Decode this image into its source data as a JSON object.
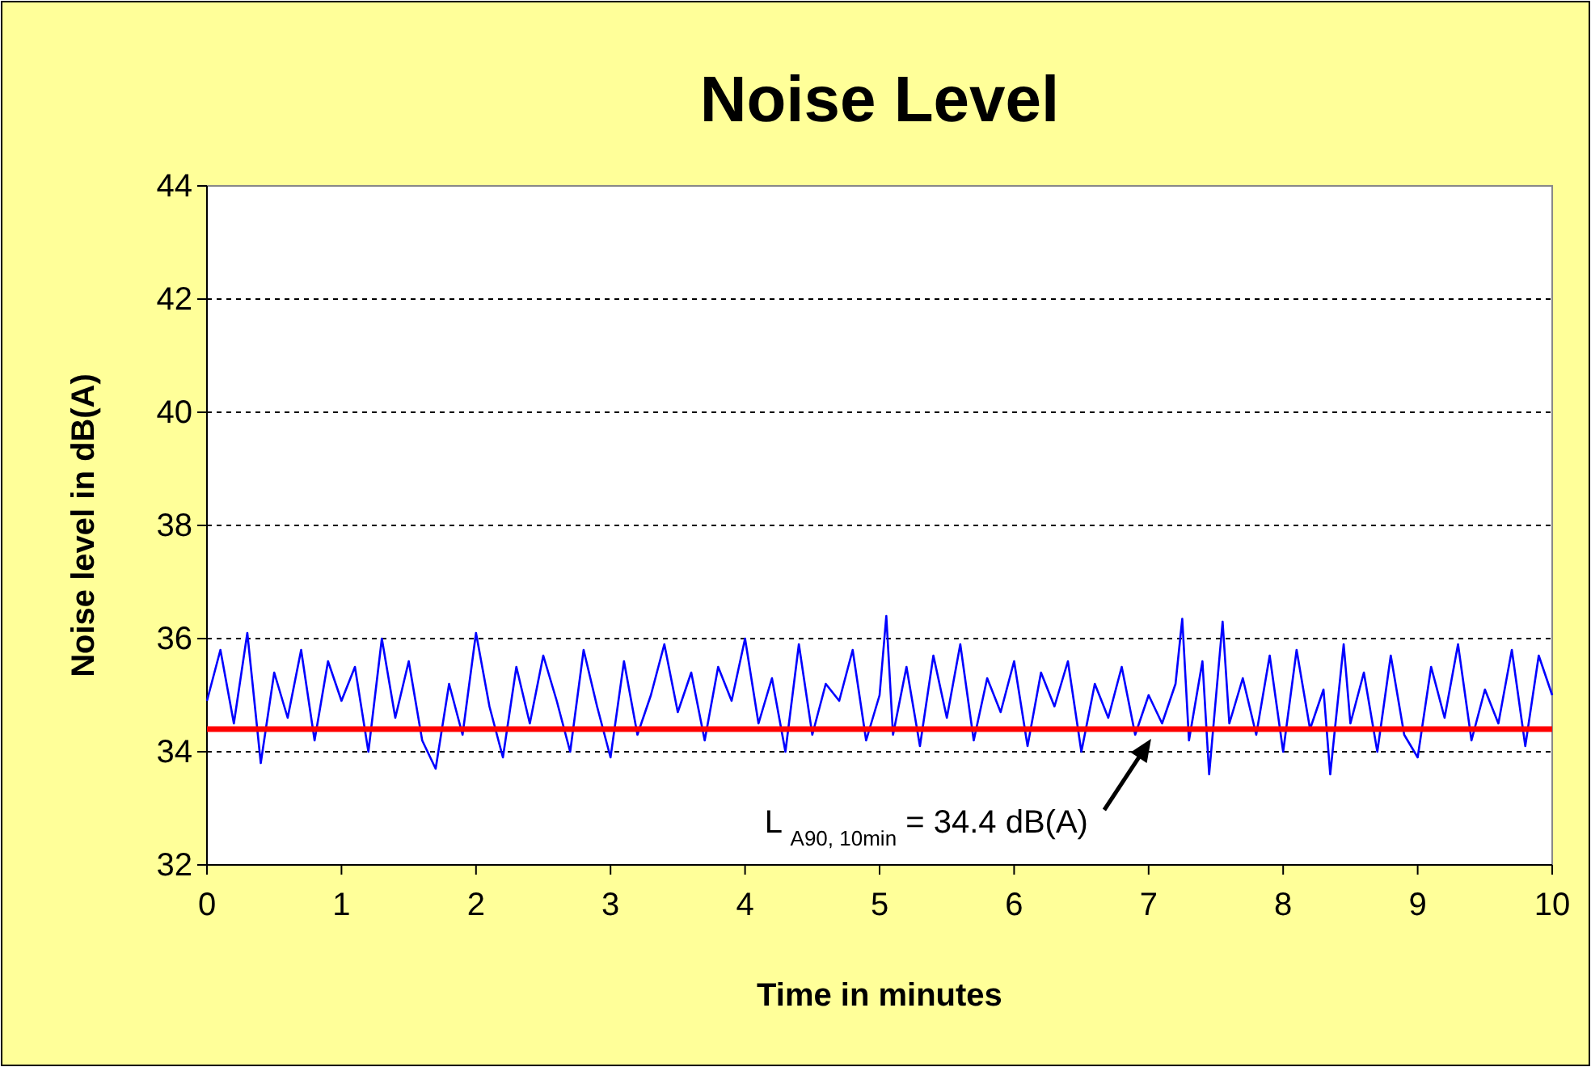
{
  "chart_data": {
    "type": "line",
    "title": "Noise Level",
    "xlabel": "Time in minutes",
    "ylabel": "Noise level in dB(A)",
    "x": [
      0,
      0.1,
      0.2,
      0.3,
      0.4,
      0.5,
      0.6,
      0.7,
      0.8,
      0.9,
      1,
      1.1,
      1.2,
      1.3,
      1.4,
      1.5,
      1.6,
      1.7,
      1.8,
      1.9,
      2,
      2.1,
      2.2,
      2.3,
      2.4,
      2.5,
      2.6,
      2.7,
      2.8,
      2.9,
      3,
      3.1,
      3.2,
      3.3,
      3.4,
      3.5,
      3.6,
      3.7,
      3.8,
      3.9,
      4,
      4.1,
      4.2,
      4.3,
      4.4,
      4.5,
      4.6,
      4.7,
      4.8,
      4.9,
      5,
      5.05,
      5.1,
      5.2,
      5.3,
      5.4,
      5.5,
      5.6,
      5.7,
      5.8,
      5.9,
      6,
      6.1,
      6.2,
      6.3,
      6.4,
      6.5,
      6.6,
      6.7,
      6.8,
      6.9,
      7,
      7.1,
      7.2,
      7.25,
      7.3,
      7.4,
      7.45,
      7.55,
      7.6,
      7.7,
      7.8,
      7.9,
      8,
      8.1,
      8.2,
      8.3,
      8.35,
      8.45,
      8.5,
      8.6,
      8.7,
      8.8,
      8.9,
      9,
      9.1,
      9.2,
      9.3,
      9.4,
      9.5,
      9.6,
      9.7,
      9.8,
      9.9,
      10
    ],
    "series": [
      {
        "color": "#0000ff",
        "values": [
          34.9,
          35.8,
          34.5,
          36.1,
          33.8,
          35.4,
          34.6,
          35.8,
          34.2,
          35.6,
          34.9,
          35.5,
          34.0,
          36.0,
          34.6,
          35.6,
          34.2,
          33.7,
          35.2,
          34.3,
          36.1,
          34.8,
          33.9,
          35.5,
          34.5,
          35.7,
          34.9,
          34.0,
          35.8,
          34.8,
          33.9,
          35.6,
          34.3,
          35.0,
          35.9,
          34.7,
          35.4,
          34.2,
          35.5,
          34.9,
          36.0,
          34.5,
          35.3,
          34.0,
          35.9,
          34.3,
          35.2,
          34.9,
          35.8,
          34.2,
          35.0,
          36.4,
          34.3,
          35.5,
          34.1,
          35.7,
          34.6,
          35.9,
          34.2,
          35.3,
          34.7,
          35.6,
          34.1,
          35.4,
          34.8,
          35.6,
          34.0,
          35.2,
          34.6,
          35.5,
          34.3,
          35.0,
          34.5,
          35.2,
          36.35,
          34.2,
          35.6,
          33.6,
          36.3,
          34.5,
          35.3,
          34.3,
          35.7,
          34.0,
          35.8,
          34.4,
          35.1,
          33.6,
          35.9,
          34.5,
          35.4,
          34.0,
          35.7,
          34.3,
          33.9,
          35.5,
          34.6,
          35.9,
          34.2,
          35.1,
          34.5,
          35.8,
          34.1,
          35.7,
          35.0
        ]
      }
    ],
    "xlim": [
      0,
      10
    ],
    "xticks": [
      0,
      1,
      2,
      3,
      4,
      5,
      6,
      7,
      8,
      9,
      10
    ],
    "ylim": [
      32,
      44
    ],
    "yticks": [
      32,
      34,
      36,
      38,
      40,
      42,
      44
    ],
    "grid": "y",
    "marker": "none",
    "line_style": "solid",
    "ref_lines": [
      {
        "axis": "y",
        "value": 34.4,
        "color": "#ff0000",
        "line_style": "solid"
      }
    ],
    "annotations": [
      "L $_{A90, 10min}$ = 34.4 dB(A)"
    ]
  }
}
